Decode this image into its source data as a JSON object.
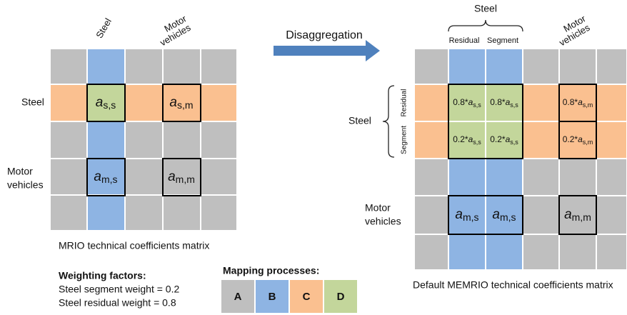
{
  "left_matrix": {
    "column_labels": [
      [
        "Steel"
      ],
      [
        "Motor",
        "vehicles"
      ]
    ],
    "row_labels": [
      [
        "Steel"
      ],
      [
        "Motor",
        "vehicles"
      ]
    ],
    "cells": [
      {
        "base": "a",
        "sub": "s,s"
      },
      {
        "base": "a",
        "sub": "s,m"
      },
      {
        "base": "a",
        "sub": "m,s"
      },
      {
        "base": "a",
        "sub": "m,m"
      }
    ],
    "caption": "MRIO technical coefficients matrix"
  },
  "arrow_label": "Disaggregation",
  "right_matrix": {
    "group_label": "Steel",
    "subcolumn_labels": [
      "Residual",
      "Segment"
    ],
    "column_label": [
      "Motor",
      "vehicles"
    ],
    "row_labels": [
      [
        "Steel"
      ],
      [
        "Motor",
        "vehicles"
      ]
    ],
    "subrow_labels": [
      "Residual",
      "Segment"
    ],
    "cells": [
      {
        "prefix": "0.8*",
        "base": "a",
        "sub": "s,s"
      },
      {
        "prefix": "0.8*",
        "base": "a",
        "sub": "s,s"
      },
      {
        "prefix": "0.8*",
        "base": "a",
        "sub": "s,m"
      },
      {
        "prefix": "0.2*",
        "base": "a",
        "sub": "s,s"
      },
      {
        "prefix": "0.2*",
        "base": "a",
        "sub": "s,s"
      },
      {
        "prefix": "0.2*",
        "base": "a",
        "sub": "s,m"
      },
      {
        "base": "a",
        "sub": "m,s"
      },
      {
        "base": "a",
        "sub": "m,s"
      },
      {
        "base": "a",
        "sub": "m,m"
      }
    ],
    "caption": "Default MEMRIO technical coefficients matrix"
  },
  "weighting": {
    "title": "Weighting factors:",
    "lines": [
      "Steel segment weight = 0.2",
      "Steel residual weight = 0.8"
    ]
  },
  "mapping": {
    "title": "Mapping processes:",
    "labels": [
      "A",
      "B",
      "C",
      "D"
    ]
  }
}
